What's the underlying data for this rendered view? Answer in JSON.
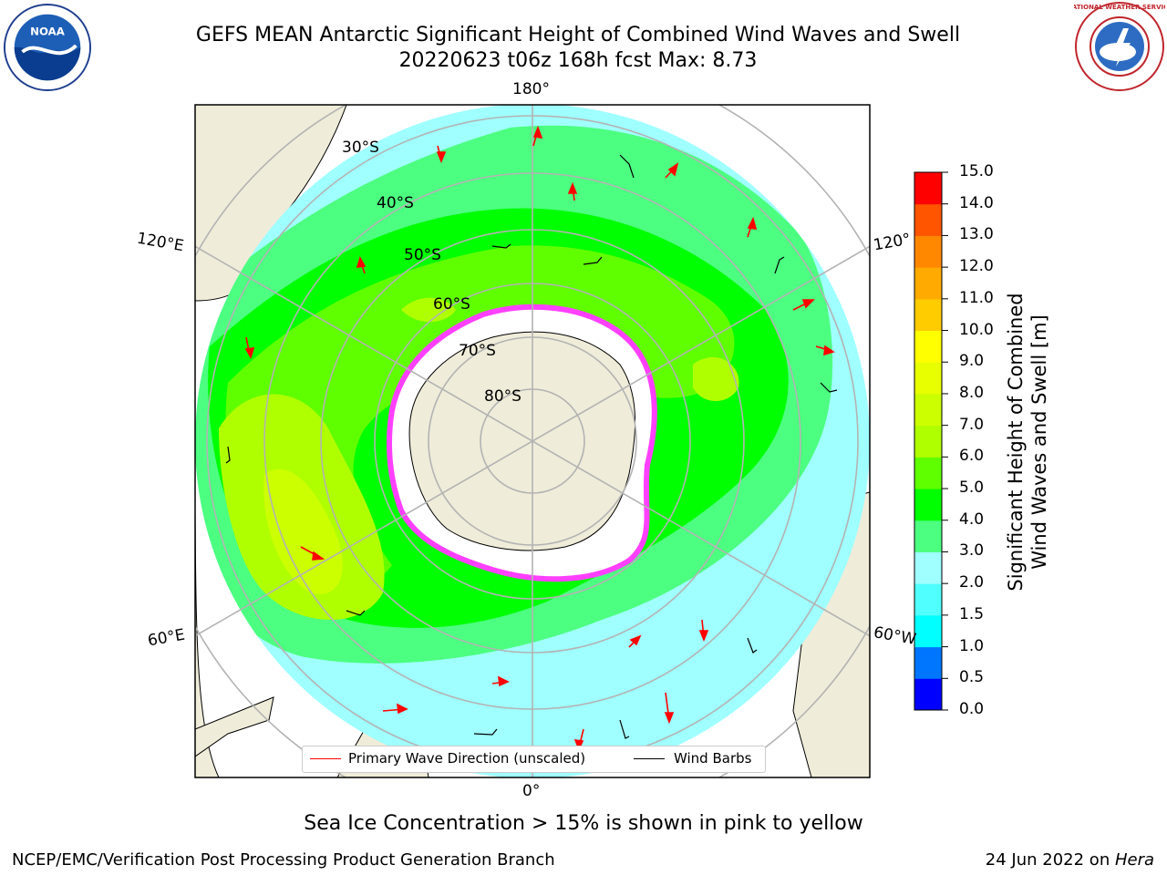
{
  "title": {
    "line1": "GEFS MEAN Antarctic Significant Height of Combined Wind Waves and Swell",
    "line2": "20220623 t06z 168h fcst   Max: 8.73"
  },
  "logos": {
    "left": {
      "icon": "noaa-logo",
      "text": "NOAA"
    },
    "right": {
      "icon": "national-weather-service-logo",
      "text": "NATIONAL WEATHER SERVICE"
    }
  },
  "map": {
    "projection": "south-polar-stereographic",
    "longitude_labels": {
      "top": "180°",
      "bottom": "0°",
      "left_upper": "120°E",
      "left_lower": "60°E",
      "right_upper": "120°",
      "right_lower": "60°W"
    },
    "latitude_labels": [
      "30°S",
      "40°S",
      "50°S",
      "60°S",
      "70°S",
      "80°S"
    ],
    "colors": {
      "land": "#efecd9",
      "ice_free_shelf": "#ffffff",
      "sea_ice": "#ff40ff",
      "coastline": "#000000",
      "grid": "#b3b3b3"
    }
  },
  "colorbar": {
    "label_line1": "Significant Height of Combined",
    "label_line2": "Wind Waves and Swell [m]",
    "ticks": [
      "15.0",
      "14.0",
      "13.0",
      "12.0",
      "11.0",
      "10.0",
      "9.0",
      "8.0",
      "7.0",
      "6.0",
      "5.0",
      "4.0",
      "3.0",
      "2.0",
      "1.5",
      "1.0",
      "0.5",
      "0.0"
    ],
    "levels": [
      0,
      0.5,
      1.0,
      1.5,
      2.0,
      3.0,
      4.0,
      5.0,
      6.0,
      7.0,
      8.0,
      9.0,
      10.0,
      11.0,
      12.0,
      13.0,
      14.0,
      15.0
    ],
    "colors": [
      "#0000ff",
      "#0076ff",
      "#00ffff",
      "#50ffff",
      "#a0ffff",
      "#4cff80",
      "#00ff00",
      "#60ff00",
      "#b0ff00",
      "#ccff00",
      "#e8ff00",
      "#ffff00",
      "#ffcc00",
      "#ffaa00",
      "#ff8800",
      "#ff5500",
      "#ff0000"
    ]
  },
  "legend": {
    "wave_label": "Primary Wave Direction (unscaled)",
    "wave_color": "#ff0000",
    "barb_label": "Wind Barbs",
    "barb_color": "#000000"
  },
  "sea_ice_note": "Sea Ice Concentration > 15% is shown in pink to yellow",
  "footer": {
    "left": "NCEP/EMC/Verification Post Processing Product Generation Branch",
    "right_date": "24 Jun 2022 on ",
    "right_host": "Hera"
  }
}
